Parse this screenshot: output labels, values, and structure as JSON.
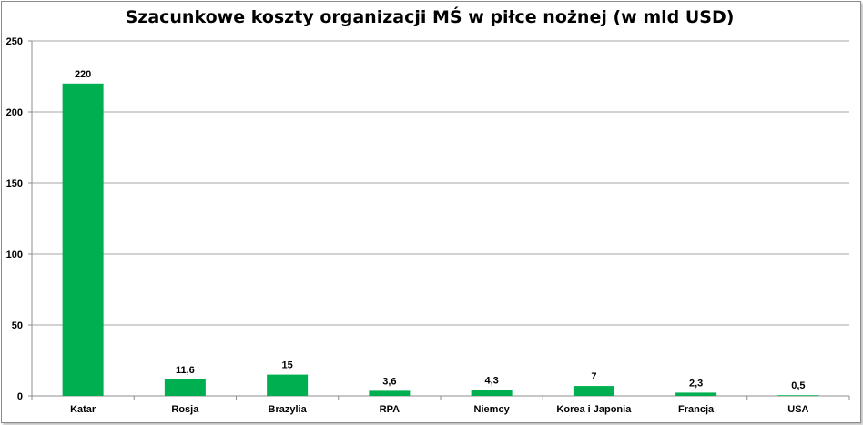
{
  "chart_data": {
    "type": "bar",
    "title": "Szacunkowe koszty organizacji MŚ w piłce nożnej (w mld USD)",
    "categories": [
      "Katar",
      "Rosja",
      "Brazylia",
      "RPA",
      "Niemcy",
      "Korea i Japonia",
      "Francja",
      "USA"
    ],
    "values": [
      220,
      11.6,
      15,
      3.6,
      4.3,
      7,
      2.3,
      0.5
    ],
    "data_labels": [
      "220",
      "11,6",
      "15",
      "3,6",
      "4,3",
      "7",
      "2,3",
      "0,5"
    ],
    "ylim": [
      0,
      250
    ],
    "yticks": [
      "0",
      "50",
      "100",
      "150",
      "200",
      "250"
    ],
    "ytick_values": [
      0,
      50,
      100,
      150,
      200,
      250
    ],
    "grid": true,
    "bar_color": "#00b050",
    "grid_color": "#a6a6a6"
  }
}
